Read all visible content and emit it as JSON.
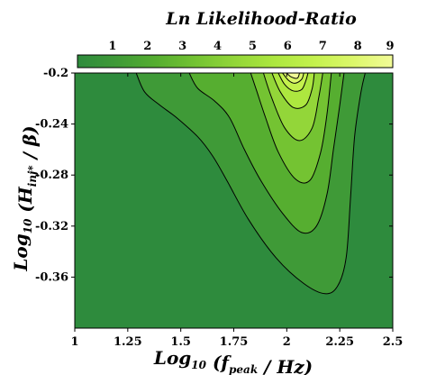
{
  "chart_data": {
    "type": "contour",
    "title": "Ln Likelihood-Ratio",
    "xlabel": {
      "pre": "Log",
      "sub": "10",
      "mid": " (f",
      "sub2": "peak",
      "post": " / Hz)"
    },
    "ylabel": {
      "pre": "Log",
      "sub": "10",
      "mid": " (H",
      "sub2": "inj*",
      "post": " / β)"
    },
    "xlim": [
      1,
      2.5
    ],
    "ylim": [
      -0.4,
      -0.2
    ],
    "x_ticks": [
      "1",
      "1.25",
      "1.5",
      "1.75",
      "2",
      "2.25",
      "2.5"
    ],
    "x_tick_values": [
      1,
      1.25,
      1.5,
      1.75,
      2,
      2.25,
      2.5
    ],
    "y_ticks": [
      "-0.2",
      "-0.24",
      "-0.28",
      "-0.32",
      "-0.36"
    ],
    "y_tick_values": [
      -0.2,
      -0.24,
      -0.28,
      -0.32,
      -0.36
    ],
    "colorbar": {
      "labels": [
        "1",
        "2",
        "3",
        "4",
        "5",
        "6",
        "7",
        "8",
        "9"
      ],
      "range": [
        0,
        9
      ],
      "colors": [
        "#2e8b3d",
        "#3f9a37",
        "#56ae30",
        "#74c332",
        "#93d639",
        "#ade73f",
        "#c4f14d",
        "#dcf76a",
        "#f2fb98"
      ]
    },
    "contours": [
      {
        "level": 1,
        "points": [
          [
            1.29,
            -0.2
          ],
          [
            1.33,
            -0.215
          ],
          [
            1.4,
            -0.225
          ],
          [
            1.48,
            -0.235
          ],
          [
            1.58,
            -0.25
          ],
          [
            1.65,
            -0.265
          ],
          [
            1.72,
            -0.285
          ],
          [
            1.82,
            -0.315
          ],
          [
            1.95,
            -0.345
          ],
          [
            2.08,
            -0.365
          ],
          [
            2.18,
            -0.373
          ],
          [
            2.24,
            -0.367
          ],
          [
            2.28,
            -0.345
          ],
          [
            2.3,
            -0.3
          ],
          [
            2.32,
            -0.25
          ],
          [
            2.35,
            -0.215
          ],
          [
            2.37,
            -0.2
          ]
        ]
      },
      {
        "level": 2,
        "points": [
          [
            1.54,
            -0.2
          ],
          [
            1.58,
            -0.212
          ],
          [
            1.66,
            -0.222
          ],
          [
            1.73,
            -0.235
          ],
          [
            1.8,
            -0.26
          ],
          [
            1.88,
            -0.285
          ],
          [
            1.98,
            -0.31
          ],
          [
            2.07,
            -0.325
          ],
          [
            2.14,
            -0.32
          ],
          [
            2.19,
            -0.295
          ],
          [
            2.22,
            -0.26
          ],
          [
            2.25,
            -0.225
          ],
          [
            2.27,
            -0.2
          ]
        ]
      },
      {
        "level": 3,
        "points": [
          [
            1.83,
            -0.2
          ],
          [
            1.86,
            -0.215
          ],
          [
            1.9,
            -0.235
          ],
          [
            1.96,
            -0.262
          ],
          [
            2.04,
            -0.283
          ],
          [
            2.11,
            -0.284
          ],
          [
            2.16,
            -0.262
          ],
          [
            2.19,
            -0.232
          ],
          [
            2.21,
            -0.2
          ]
        ]
      },
      {
        "level": 4,
        "points": [
          [
            1.89,
            -0.2
          ],
          [
            1.93,
            -0.22
          ],
          [
            1.99,
            -0.243
          ],
          [
            2.06,
            -0.253
          ],
          [
            2.12,
            -0.243
          ],
          [
            2.15,
            -0.22
          ],
          [
            2.17,
            -0.2
          ]
        ]
      },
      {
        "level": 5,
        "points": [
          [
            1.93,
            -0.2
          ],
          [
            1.97,
            -0.215
          ],
          [
            2.03,
            -0.227
          ],
          [
            2.09,
            -0.225
          ],
          [
            2.12,
            -0.212
          ],
          [
            2.13,
            -0.2
          ]
        ]
      },
      {
        "level": 6,
        "points": [
          [
            1.96,
            -0.2
          ],
          [
            1.99,
            -0.209
          ],
          [
            2.03,
            -0.214
          ],
          [
            2.07,
            -0.213
          ],
          [
            2.09,
            -0.206
          ],
          [
            2.1,
            -0.2
          ]
        ]
      },
      {
        "level": 7,
        "points": [
          [
            1.98,
            -0.2
          ],
          [
            2.01,
            -0.206
          ],
          [
            2.04,
            -0.208
          ],
          [
            2.07,
            -0.205
          ],
          [
            2.08,
            -0.2
          ]
        ]
      },
      {
        "level": 8,
        "points": [
          [
            2.0,
            -0.2
          ],
          [
            2.02,
            -0.203
          ],
          [
            2.05,
            -0.204
          ],
          [
            2.06,
            -0.2
          ]
        ]
      }
    ]
  }
}
